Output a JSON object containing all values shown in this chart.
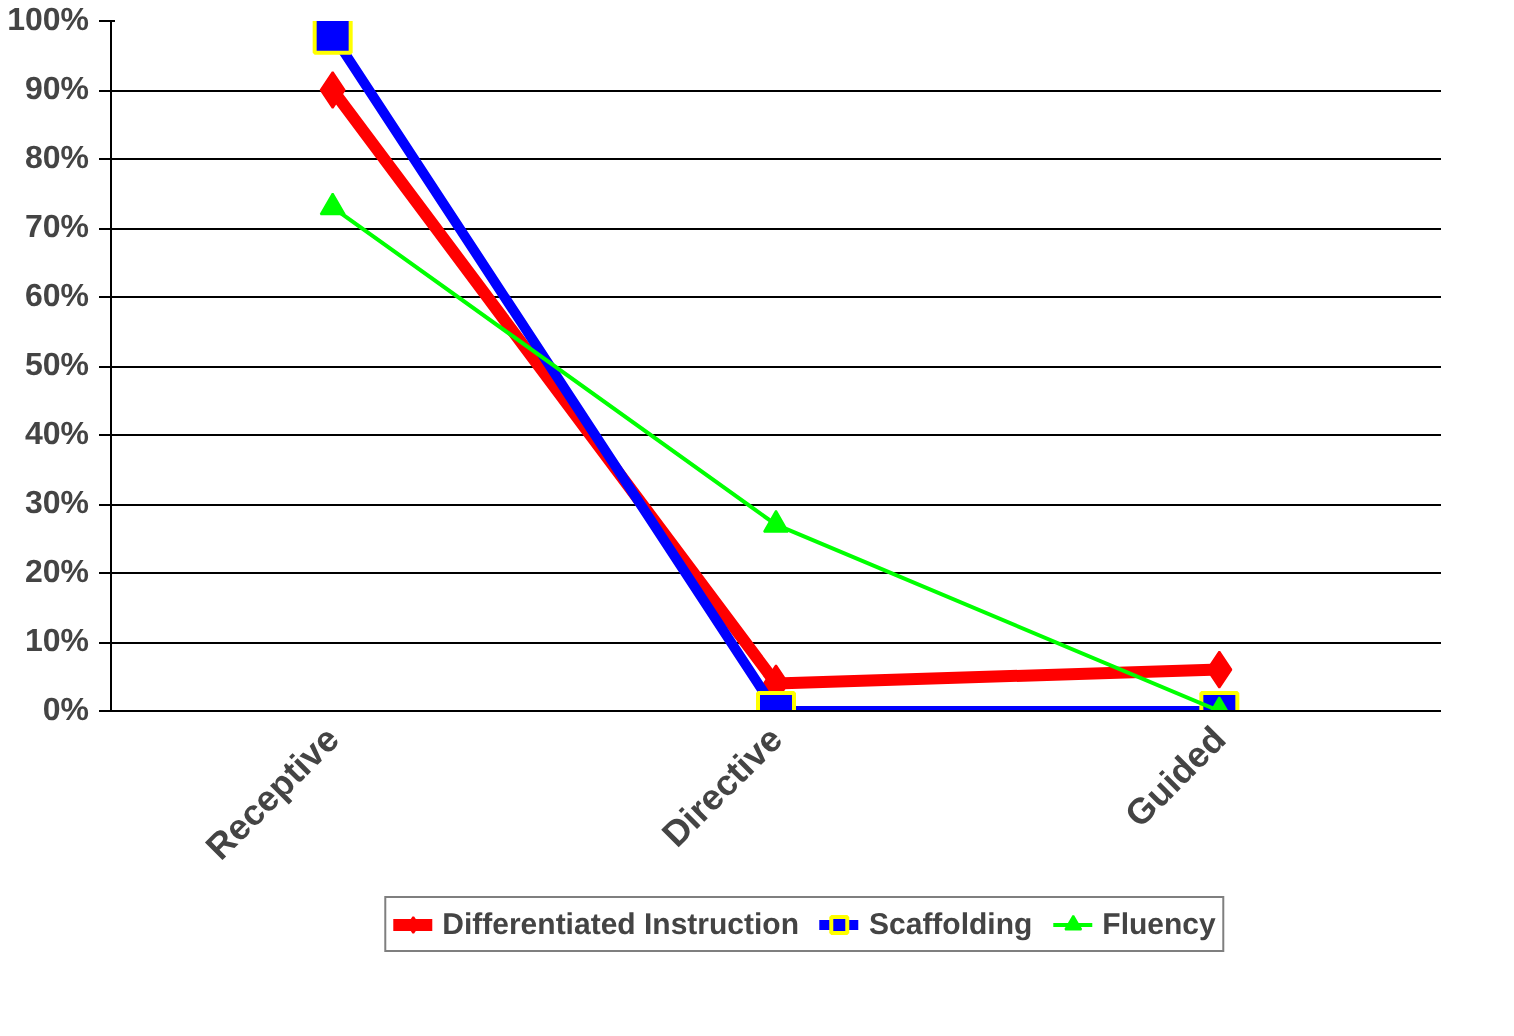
{
  "chart_data": {
    "type": "line",
    "categories": [
      "Receptive",
      "Directive",
      "Guided"
    ],
    "series": [
      {
        "name": "Differentiated Instruction",
        "color": "#ff0000",
        "marker": "diamond",
        "values": [
          90,
          4,
          6
        ]
      },
      {
        "name": "Scaffolding",
        "color": "#0000ff",
        "marker": "square",
        "values": [
          98,
          0,
          0
        ]
      },
      {
        "name": "Fluency",
        "color": "#00ff00",
        "marker": "triangle",
        "values": [
          73,
          27,
          0
        ]
      }
    ],
    "ylim": [
      0,
      100
    ],
    "yticks": [
      {
        "value": 0,
        "label": "0%"
      },
      {
        "value": 10,
        "label": "10%"
      },
      {
        "value": 20,
        "label": "20%"
      },
      {
        "value": 30,
        "label": "30%"
      },
      {
        "value": 40,
        "label": "40%"
      },
      {
        "value": 50,
        "label": "50%"
      },
      {
        "value": 60,
        "label": "60%"
      },
      {
        "value": 70,
        "label": "70%"
      },
      {
        "value": 80,
        "label": "80%"
      },
      {
        "value": 90,
        "label": "90%"
      },
      {
        "value": 100,
        "label": "100%"
      }
    ],
    "grid": "y",
    "legend": "bottom",
    "line_style": "solid"
  }
}
